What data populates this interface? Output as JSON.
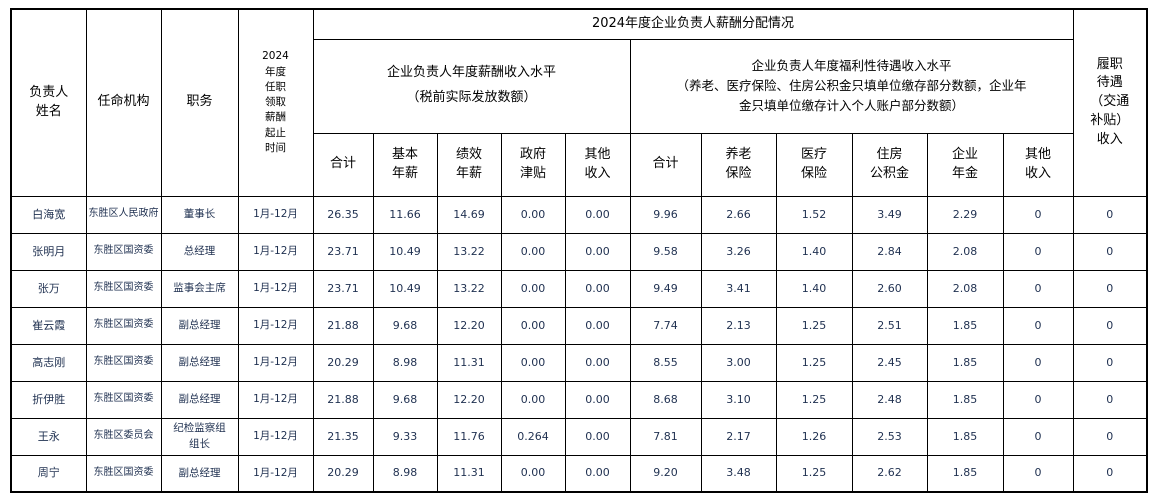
{
  "title": "2024年度企业负责人薪酬分配情况",
  "table": {
    "header": {
      "col_name": "负责人\n姓名",
      "col_org": "任命机构",
      "col_title": "职务",
      "col_period": "2024\n年度\n任职\n领取\n薪酬\n起止\n时间",
      "group_main": "2024年度企业负责人薪酬分配情况",
      "group_salary": "企业负责人年度薪酬收入水平\n（税前实际发放数额）",
      "group_welfare": "企业负责人年度福利性待遇收入水平\n（养老、医疗保险、住房公积金只填单位缴存部分数额，企业年\n金只填单位缴存计入个人账户部分数额）",
      "col_duty": "履职\n待遇\n（交通\n补贴）\n收入",
      "sub": [
        "合计",
        "基本\n年薪",
        "绩效\n年薪",
        "政府\n津贴",
        "其他\n收入",
        "合计",
        "养老\n保险",
        "医疗\n保险",
        "住房\n公积金",
        "企业\n年金",
        "其他\n收入"
      ]
    },
    "rows": [
      [
        "白海宽",
        "东胜区人民政府",
        "董事长",
        "1月-12月",
        "26.35",
        "11.66",
        "14.69",
        "0.00",
        "0.00",
        "9.96",
        "2.66",
        "1.52",
        "3.49",
        "2.29",
        "0",
        "0"
      ],
      [
        "张明月",
        "东胜区国资委",
        "总经理",
        "1月-12月",
        "23.71",
        "10.49",
        "13.22",
        "0.00",
        "0.00",
        "9.58",
        "3.26",
        "1.40",
        "2.84",
        "2.08",
        "0",
        "0"
      ],
      [
        "张万",
        "东胜区国资委",
        "监事会主席",
        "1月-12月",
        "23.71",
        "10.49",
        "13.22",
        "0.00",
        "0.00",
        "9.49",
        "3.41",
        "1.40",
        "2.60",
        "2.08",
        "0",
        "0"
      ],
      [
        "崔云霞",
        "东胜区国资委",
        "副总经理",
        "1月-12月",
        "21.88",
        "9.68",
        "12.20",
        "0.00",
        "0.00",
        "7.74",
        "2.13",
        "1.25",
        "2.51",
        "1.85",
        "0",
        "0"
      ],
      [
        "高志刚",
        "东胜区国资委",
        "副总经理",
        "1月-12月",
        "20.29",
        "8.98",
        "11.31",
        "0.00",
        "0.00",
        "8.55",
        "3.00",
        "1.25",
        "2.45",
        "1.85",
        "0",
        "0"
      ],
      [
        "折伊胜",
        "东胜区国资委",
        "副总经理",
        "1月-12月",
        "21.88",
        "9.68",
        "12.20",
        "0.00",
        "0.00",
        "8.68",
        "3.10",
        "1.25",
        "2.48",
        "1.85",
        "0",
        "0"
      ],
      [
        "王永",
        "东胜区委员会",
        "纪检监察组\n组长",
        "1月-12月",
        "21.35",
        "9.33",
        "11.76",
        "0.264",
        "0.00",
        "7.81",
        "2.17",
        "1.26",
        "2.53",
        "1.85",
        "0",
        "0"
      ],
      [
        "周宁",
        "东胜区国资委",
        "副总经理",
        "1月-12月",
        "20.29",
        "8.98",
        "11.31",
        "0.00",
        "0.00",
        "9.20",
        "3.48",
        "1.25",
        "2.62",
        "1.85",
        "0",
        "0"
      ]
    ]
  },
  "colors": {
    "border": "#000000",
    "header_text": "#000000",
    "data_text": "#1f3050",
    "background": "#ffffff"
  }
}
